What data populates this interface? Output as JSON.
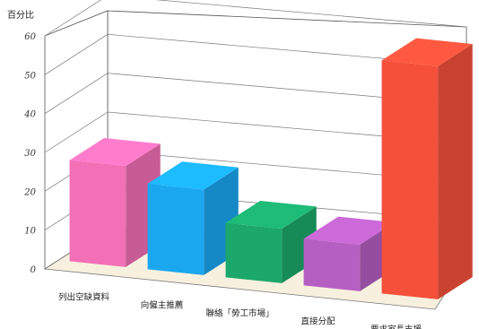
{
  "chart_data": {
    "type": "bar",
    "ylabel": "百分比",
    "categories": [
      "列出空缺資料",
      "向僱主推薦",
      "聯絡「勞工市場」",
      "直接分配",
      "要求家長支援"
    ],
    "values": [
      26,
      22,
      14,
      12,
      60
    ],
    "ylim": [
      0,
      60
    ],
    "yticks": [
      0,
      10,
      20,
      30,
      40,
      50,
      60
    ],
    "grid": true,
    "colors": [
      "#f36fb6",
      "#1aa7f0",
      "#1ba86a",
      "#b65fc2",
      "#f5503a"
    ]
  }
}
